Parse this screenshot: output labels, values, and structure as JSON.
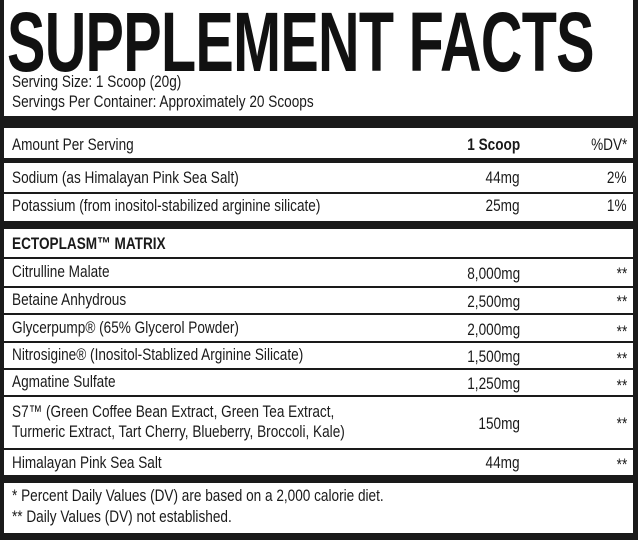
{
  "title": "SUPPLEMENT FACTS",
  "serving_size": "Serving Size: 1 Scoop (20g)",
  "servings_per_container": "Servings Per Container: Approximately 20 Scoops",
  "header": {
    "label": "Amount Per Serving",
    "amount": "1 Scoop",
    "dv": "%DV*"
  },
  "nutrients": [
    {
      "name": "Sodium (as Himalayan Pink Sea Salt)",
      "amount": "44mg",
      "dv": "2%"
    },
    {
      "name": "Potassium (from inositol-stabilized arginine silicate)",
      "amount": "25mg",
      "dv": "1%"
    }
  ],
  "matrix_title": "ECTOPLASM™ MATRIX",
  "matrix": [
    {
      "name": "Citrulline Malate",
      "amount": "8,000mg",
      "dv": "**"
    },
    {
      "name": "Betaine Anhydrous",
      "amount": "2,500mg",
      "dv": "**"
    },
    {
      "name": "Glycerpump® (65% Glycerol Powder)",
      "amount": "2,000mg",
      "dv": "**"
    },
    {
      "name": "Nitrosigine® (Inositol-Stablized Arginine Silicate)",
      "amount": "1,500mg",
      "dv": "**"
    },
    {
      "name": "Agmatine Sulfate",
      "amount": "1,250mg",
      "dv": "**"
    },
    {
      "name": "S7™ (Green Coffee Bean Extract, Green Tea Extract,",
      "name_line2": "Turmeric Extract, Tart Cherry, Blueberry, Broccoli, Kale)",
      "amount": "150mg",
      "dv": "**"
    },
    {
      "name": "Himalayan Pink Sea Salt",
      "amount": "44mg",
      "dv": "**"
    }
  ],
  "footnotes": [
    "* Percent Daily Values (DV) are based on a 2,000 calorie diet.",
    "** Daily Values (DV) not established."
  ]
}
